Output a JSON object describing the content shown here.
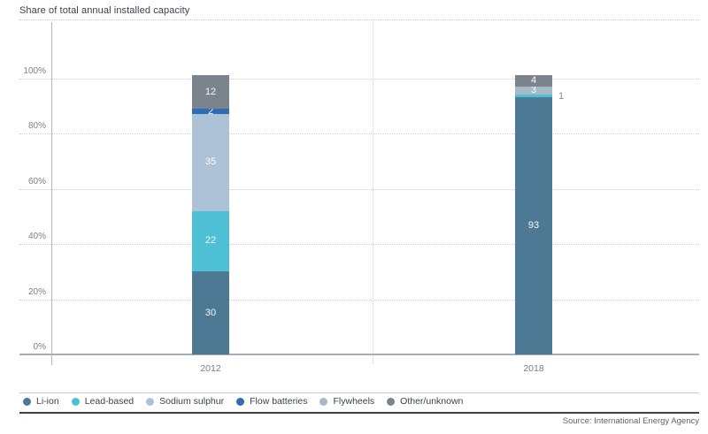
{
  "title": "Share of total annual installed capacity",
  "source": "Source: International Energy Agency",
  "chart_data": {
    "type": "bar",
    "subtype": "stacked",
    "title": "Share of total annual installed capacity",
    "categories": [
      "2012",
      "2018"
    ],
    "series": [
      {
        "name": "Li-ion",
        "color": "#4d7994",
        "values": [
          30,
          93
        ]
      },
      {
        "name": "Lead-based",
        "color": "#4dc0d5",
        "values": [
          22,
          1
        ]
      },
      {
        "name": "Sodium sulphur",
        "color": "#adc2d7",
        "values": [
          35,
          0
        ]
      },
      {
        "name": "Flow batteries",
        "color": "#2e6db5",
        "values": [
          2,
          0
        ]
      },
      {
        "name": "Flywheels",
        "color": "#a5b9c6",
        "values": [
          0,
          3
        ]
      },
      {
        "name": "Other/unknown",
        "color": "#7b838d",
        "values": [
          12,
          4
        ]
      }
    ],
    "xlabel": "",
    "ylabel": "",
    "yticks": [
      "0%",
      "20%",
      "40%",
      "60%",
      "80%",
      "100%"
    ],
    "ylim": [
      0,
      100
    ],
    "grid": "horizontal-dotted",
    "legend_position": "bottom"
  }
}
